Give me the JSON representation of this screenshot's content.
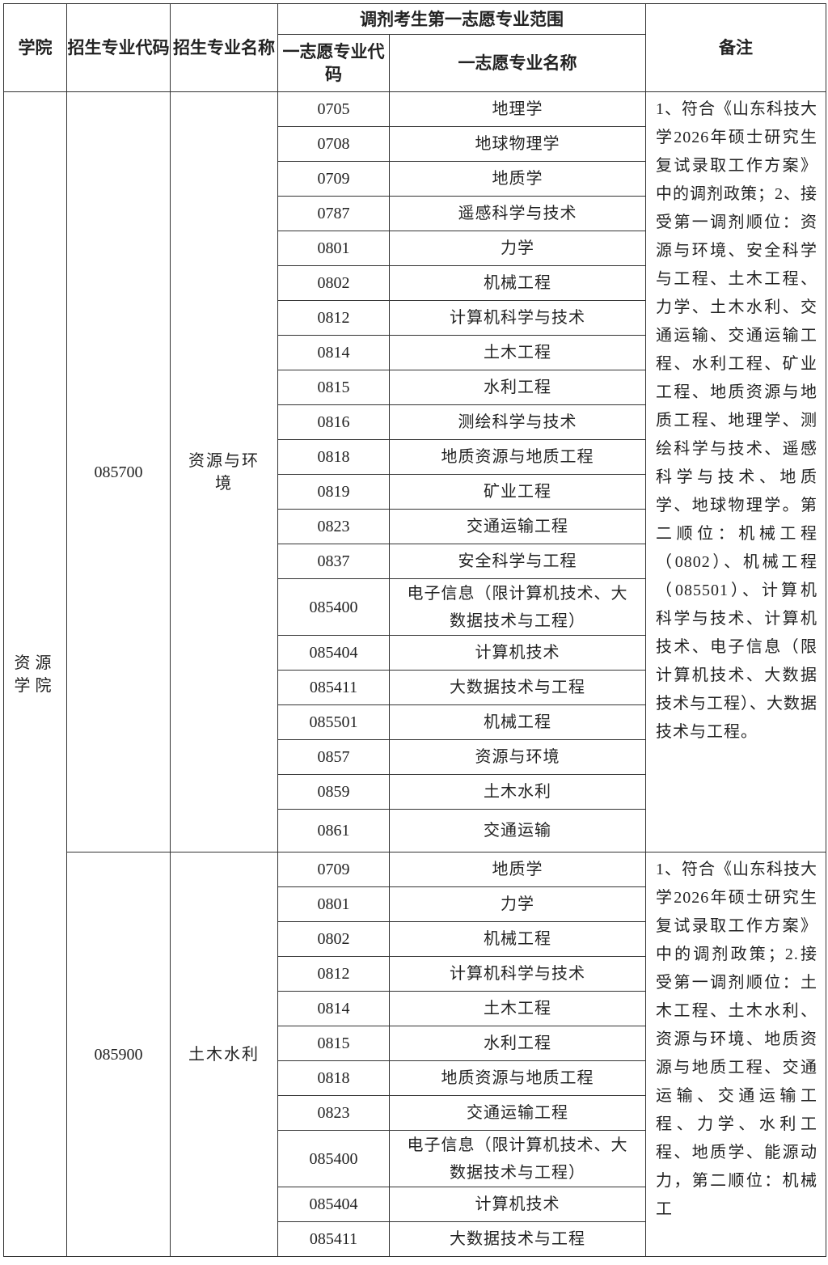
{
  "header": {
    "college": "学院",
    "major_code": "招生专业代码",
    "major_name": "招生专业名称",
    "range_group": "调剂考生第一志愿专业范围",
    "first_code": "一志愿专业代码",
    "first_name": "一志愿专业名称",
    "remarks": "备注"
  },
  "college": "资源学院",
  "groups": [
    {
      "code": "085700",
      "name": "资源与环境",
      "rows": [
        {
          "code": "0705",
          "name": "地理学"
        },
        {
          "code": "0708",
          "name": "地球物理学"
        },
        {
          "code": "0709",
          "name": "地质学"
        },
        {
          "code": "0787",
          "name": "遥感科学与技术"
        },
        {
          "code": "0801",
          "name": "力学"
        },
        {
          "code": "0802",
          "name": "机械工程"
        },
        {
          "code": "0812",
          "name": "计算机科学与技术"
        },
        {
          "code": "0814",
          "name": "土木工程"
        },
        {
          "code": "0815",
          "name": "水利工程"
        },
        {
          "code": "0816",
          "name": "测绘科学与技术"
        },
        {
          "code": "0818",
          "name": "地质资源与地质工程"
        },
        {
          "code": "0819",
          "name": "矿业工程"
        },
        {
          "code": "0823",
          "name": "交通运输工程"
        },
        {
          "code": "0837",
          "name": "安全科学与工程"
        },
        {
          "code": "085400",
          "name": "电子信息（限计算机技术、大数据技术与工程）"
        },
        {
          "code": "085404",
          "name": "计算机技术"
        },
        {
          "code": "085411",
          "name": "大数据技术与工程"
        },
        {
          "code": "085501",
          "name": "机械工程"
        },
        {
          "code": "0857",
          "name": "资源与环境"
        },
        {
          "code": "0859",
          "name": "土木水利"
        },
        {
          "code": "0861",
          "name": "交通运输"
        }
      ],
      "note": "1、符合《山东科技大学2026年硕士研究生复试录取工作方案》中的调剂政策；2、接受第一调剂顺位：资源与环境、安全科学与工程、土木工程、力学、土木水利、交通运输、交通运输工程、水利工程、矿业工程、地质资源与地质工程、地理学、测绘科学与技术、遥感科学与技术、地质学、地球物理学。第二顺位：机械工程（0802）、机械工程（085501）、计算机科学与技术、计算机技术、电子信息（限计算机技术、大数据技术与工程）、大数据技术与工程。"
    },
    {
      "code": "085900",
      "name": "土木水利",
      "rows": [
        {
          "code": "0709",
          "name": "地质学"
        },
        {
          "code": "0801",
          "name": "力学"
        },
        {
          "code": "0802",
          "name": "机械工程"
        },
        {
          "code": "0812",
          "name": "计算机科学与技术"
        },
        {
          "code": "0814",
          "name": "土木工程"
        },
        {
          "code": "0815",
          "name": "水利工程"
        },
        {
          "code": "0818",
          "name": "地质资源与地质工程"
        },
        {
          "code": "0823",
          "name": "交通运输工程"
        },
        {
          "code": "085400",
          "name": "电子信息（限计算机技术、大数据技术与工程）"
        },
        {
          "code": "085404",
          "name": "计算机技术"
        },
        {
          "code": "085411",
          "name": "大数据技术与工程"
        }
      ],
      "note": "1、符合《山东科技大学2026年硕士研究生复试录取工作方案》中的调剂政策；2.接受第一调剂顺位：土木工程、土木水利、资源与环境、地质资源与地质工程、交通运输、交通运输工程、力学、水利工程、地质学、能源动力，第二顺位：机械工"
    }
  ]
}
